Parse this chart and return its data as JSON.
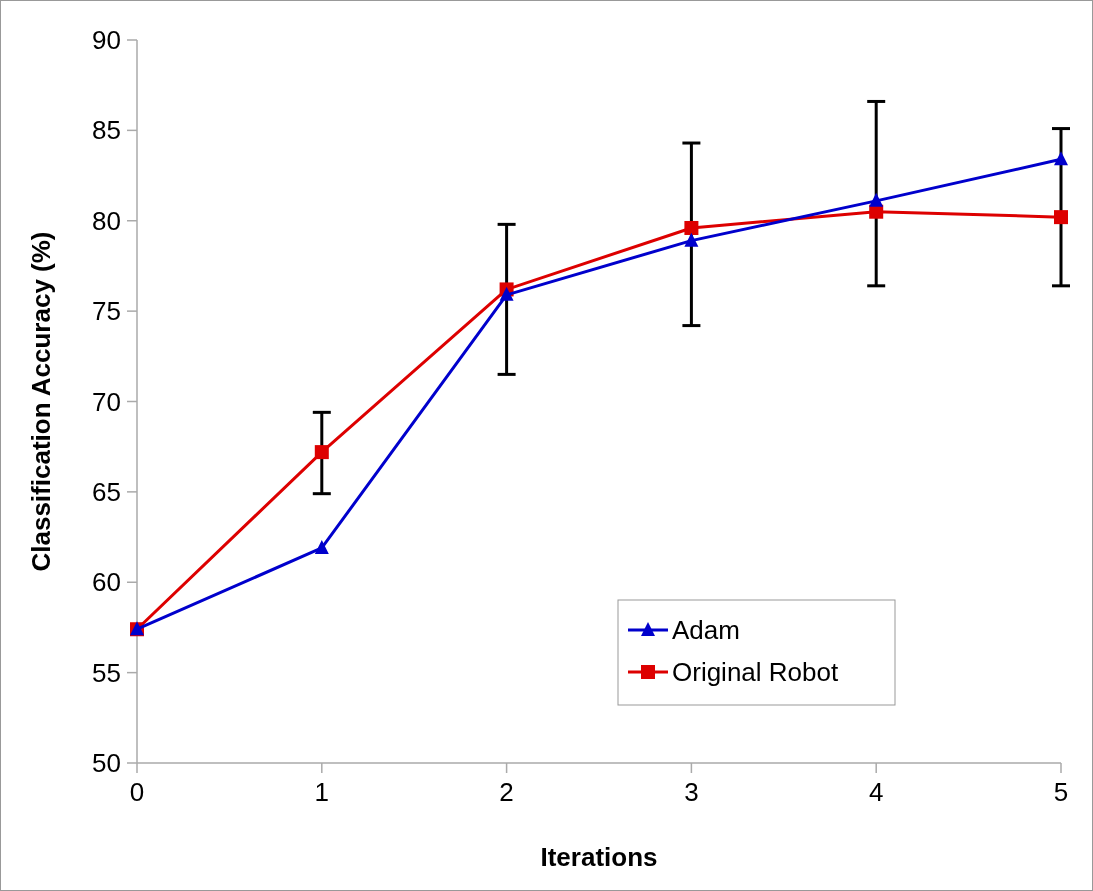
{
  "chart_data": {
    "type": "line",
    "xlabel": "Iterations",
    "ylabel": "Classification Accuracy (%)",
    "x": [
      0,
      1,
      2,
      3,
      4,
      5
    ],
    "series": [
      {
        "name": "Adam",
        "color": "#0000cc",
        "marker": "triangle",
        "values": [
          57.4,
          61.9,
          75.9,
          78.9,
          81.1,
          83.4
        ]
      },
      {
        "name": "Original Robot",
        "color": "#dd0000",
        "marker": "square",
        "values": [
          57.4,
          67.2,
          76.2,
          79.6,
          80.5,
          80.2
        ],
        "errors": [
          null,
          [
            64.9,
            69.4
          ],
          [
            71.5,
            79.8
          ],
          [
            74.2,
            84.3
          ],
          [
            76.4,
            86.6
          ],
          [
            76.4,
            85.1
          ]
        ]
      }
    ],
    "xlim": [
      0,
      5
    ],
    "xticks": [
      0,
      1,
      2,
      3,
      4,
      5
    ],
    "ylim": [
      50,
      90
    ],
    "yticks": [
      50,
      55,
      60,
      65,
      70,
      75,
      80,
      85,
      90
    ],
    "grid": false,
    "legend": "bottom right",
    "line_style": "solid"
  }
}
